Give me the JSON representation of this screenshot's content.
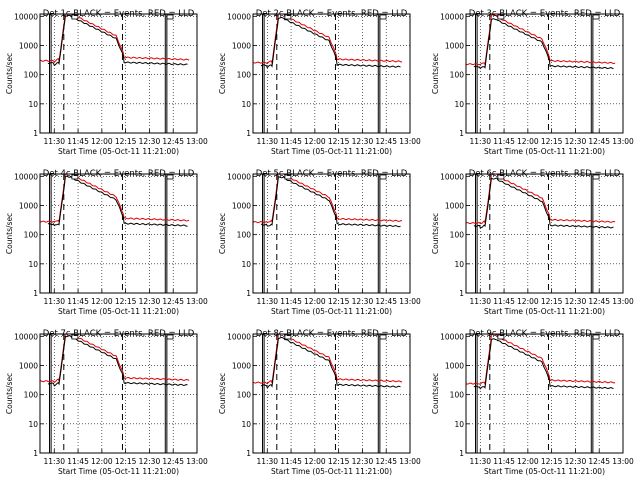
{
  "chart_data": {
    "type": "line",
    "y_scale": "log",
    "ylim": [
      1,
      12000
    ],
    "y_ticks": [
      1,
      10,
      100,
      1000,
      10000
    ],
    "y_tick_labels": [
      "1",
      "10",
      "100",
      "1000",
      "10000"
    ],
    "ylabel": "Counts/sec",
    "xlabel": "Start Time (05-Oct-11 11:21:00)",
    "xlim": [
      "11:21",
      "13:00"
    ],
    "x_ticks": [
      "11:30",
      "11:45",
      "12:00",
      "12:15",
      "12:30",
      "12:45",
      "13:00"
    ],
    "grid": true,
    "solid_markers": [
      "11:27",
      "11:28",
      "12:40",
      "12:41"
    ],
    "dashed_markers": [
      "11:36",
      "12:13"
    ],
    "series_legend": "BLACK = Events, RED = LLD",
    "panels": [
      {
        "title": "Det 1c BLACK = Events, RED = LLD",
        "events_base": 240,
        "lld_base": 300
      },
      {
        "title": "Det 2c BLACK = Events, RED = LLD",
        "events_base": 200,
        "lld_base": 260
      },
      {
        "title": "Det 3c BLACK = Events, RED = LLD",
        "events_base": 180,
        "lld_base": 230
      },
      {
        "title": "Det 4c BLACK = Events, RED = LLD",
        "events_base": 220,
        "lld_base": 280
      },
      {
        "title": "Det 5c BLACK = Events, RED = LLD",
        "events_base": 210,
        "lld_base": 270
      },
      {
        "title": "Det 6c BLACK = Events, RED = LLD",
        "events_base": 190,
        "lld_base": 250
      },
      {
        "title": "Det 7c BLACK = Events, RED = LLD",
        "events_base": 230,
        "lld_base": 290
      },
      {
        "title": "Det 8c BLACK = Events, RED = LLD",
        "events_base": 200,
        "lld_base": 260
      },
      {
        "title": "Det 9c BLACK = Events, RED = LLD",
        "events_base": 180,
        "lld_base": 240
      }
    ]
  }
}
